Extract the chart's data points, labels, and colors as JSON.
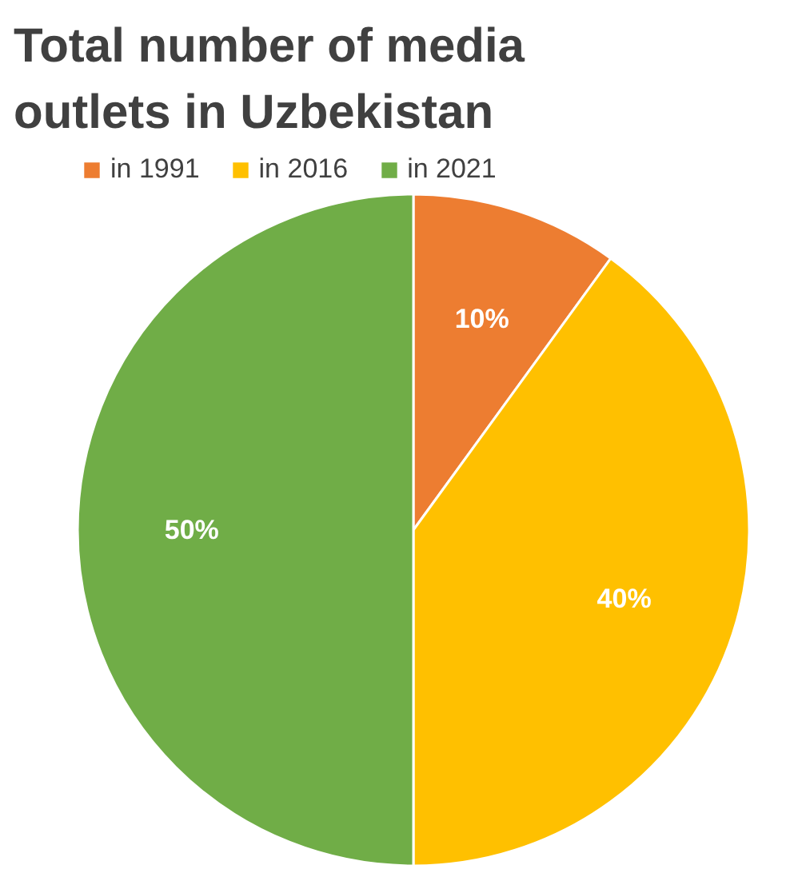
{
  "chart_data": {
    "type": "pie",
    "title": "Total number of media outlets in Uzbekistan",
    "categories": [
      "in 1991",
      "in 2016",
      "in 2021"
    ],
    "values": [
      10,
      40,
      50
    ],
    "colors": [
      "#ed7d31",
      "#ffc000",
      "#70ad47"
    ],
    "value_labels": [
      "10%",
      "40%",
      "50%"
    ],
    "legend": "top"
  }
}
